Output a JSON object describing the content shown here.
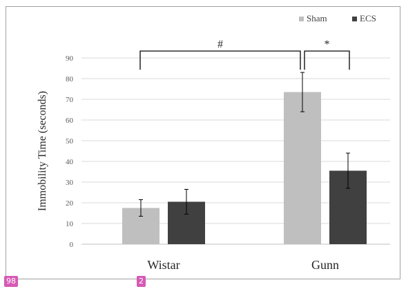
{
  "chart_data": {
    "type": "bar",
    "categories": [
      "Wistar",
      "Gunn"
    ],
    "series": [
      {
        "name": "Sham",
        "values": [
          17.5,
          73.5
        ],
        "errors": [
          4,
          9.5
        ],
        "color": "#bfbfbf"
      },
      {
        "name": "ECS",
        "values": [
          20.5,
          35.5
        ],
        "errors": [
          6,
          8.5
        ],
        "color": "#404040"
      }
    ],
    "ylabel": "Immobility Time (seconds)",
    "xlabel": "",
    "title": "",
    "ylim": [
      0,
      90
    ],
    "yticks": [
      0,
      10,
      20,
      30,
      40,
      50,
      60,
      70,
      80,
      90
    ],
    "grid": true,
    "legend_position": "top-right",
    "annotations": [
      {
        "label": "#",
        "compares": "Wistar Sham vs Gunn Sham"
      },
      {
        "label": "*",
        "compares": "Gunn Sham vs Gunn ECS"
      }
    ]
  },
  "overlay_tags": [
    "98",
    "2"
  ]
}
